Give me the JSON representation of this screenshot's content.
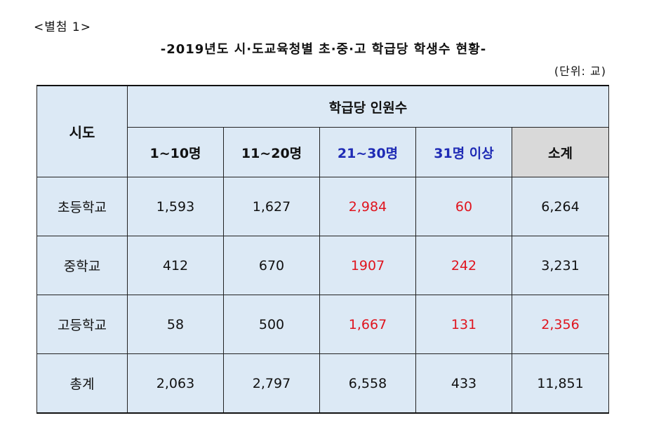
{
  "annex_label": "<별첨 1>",
  "title": "-2019년도 시·도교육청별 초·중·고 학급당 학생수 현황-",
  "unit": "(단위: 교)",
  "table": {
    "row_header": "시도",
    "group_header": "학급당 인원수",
    "columns": [
      "1~10명",
      "11~20명",
      "21~30명",
      "31명 이상",
      "소계"
    ],
    "rows": [
      {
        "label": "초등학교",
        "cells": [
          "1,593",
          "1,627",
          "2,984",
          "60",
          "6,264"
        ]
      },
      {
        "label": "중학교",
        "cells": [
          "412",
          "670",
          "1907",
          "242",
          "3,231"
        ]
      },
      {
        "label": "고등학교",
        "cells": [
          "58",
          "500",
          "1,667",
          "131",
          "2,356"
        ]
      },
      {
        "label": "총계",
        "cells": [
          "2,063",
          "2,797",
          "6,558",
          "433",
          "11,851"
        ]
      }
    ]
  },
  "colors": {
    "cell_bg": "#dce9f5",
    "subtotal_header_bg": "#d9d9d9",
    "highlight_red": "#e0141e",
    "header_blue": "#1f2bb5"
  }
}
